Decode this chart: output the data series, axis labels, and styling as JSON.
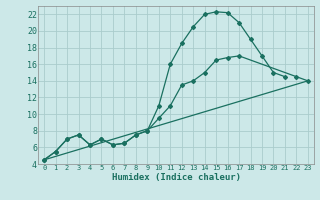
{
  "xlabel": "Humidex (Indice chaleur)",
  "bg_color": "#cce8e8",
  "grid_color": "#aacccc",
  "line_color": "#1a7060",
  "xlim": [
    -0.5,
    23.5
  ],
  "ylim": [
    4,
    23
  ],
  "xticks": [
    0,
    1,
    2,
    3,
    4,
    5,
    6,
    7,
    8,
    9,
    10,
    11,
    12,
    13,
    14,
    15,
    16,
    17,
    18,
    19,
    20,
    21,
    22,
    23
  ],
  "yticks": [
    4,
    6,
    8,
    10,
    12,
    14,
    16,
    18,
    20,
    22
  ],
  "curve_top_x": [
    0,
    1,
    2,
    3,
    4,
    5,
    6,
    7,
    8,
    9,
    10,
    11,
    12,
    13,
    14,
    15,
    16,
    17,
    18,
    19,
    20,
    21
  ],
  "curve_top_y": [
    4.5,
    5.5,
    7.0,
    7.5,
    6.3,
    7.0,
    6.3,
    6.5,
    7.5,
    8.0,
    11.0,
    16.0,
    18.5,
    20.5,
    22.0,
    22.3,
    22.2,
    21.0,
    19.0,
    17.0,
    15.0,
    14.5
  ],
  "curve_mid_x": [
    0,
    1,
    2,
    3,
    4,
    5,
    6,
    7,
    8,
    9,
    10,
    11,
    12,
    13,
    14,
    15,
    16,
    17,
    22,
    23
  ],
  "curve_mid_y": [
    4.5,
    5.5,
    7.0,
    7.5,
    6.3,
    7.0,
    6.3,
    6.5,
    7.5,
    8.0,
    9.5,
    11.0,
    13.5,
    14.0,
    15.0,
    16.5,
    16.8,
    17.0,
    14.5,
    14.0
  ],
  "line_x": [
    0,
    23
  ],
  "line_y": [
    4.5,
    14.0
  ]
}
